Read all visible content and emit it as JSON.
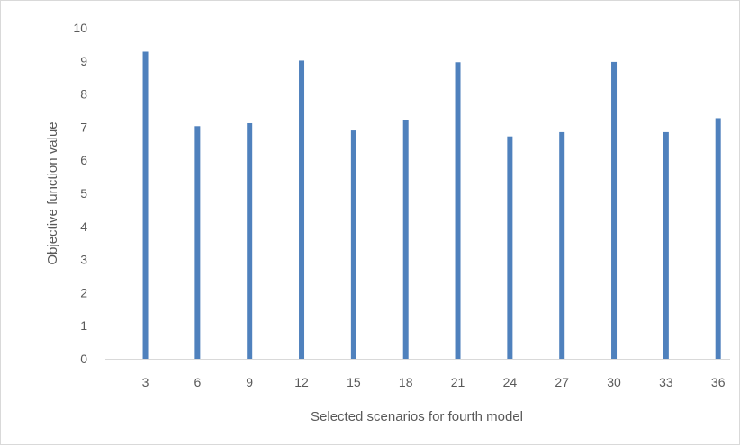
{
  "chart_data": {
    "type": "bar",
    "title": "",
    "xlabel": "Selected scenarios for fourth model",
    "ylabel": "Objective function value",
    "categories": [
      "3",
      "6",
      "9",
      "12",
      "15",
      "18",
      "21",
      "24",
      "27",
      "30",
      "33",
      "36"
    ],
    "values": [
      9.28,
      7.03,
      7.12,
      9.01,
      6.9,
      7.22,
      8.96,
      6.72,
      6.85,
      8.97,
      6.85,
      7.27
    ],
    "ylim": [
      0,
      10
    ],
    "yticks": [
      "0",
      "1",
      "2",
      "3",
      "4",
      "5",
      "6",
      "7",
      "8",
      "9",
      "10"
    ],
    "grid": false,
    "legend": "none",
    "bar_color": "#4f81bd",
    "axis_color": "#d9d9d9"
  }
}
